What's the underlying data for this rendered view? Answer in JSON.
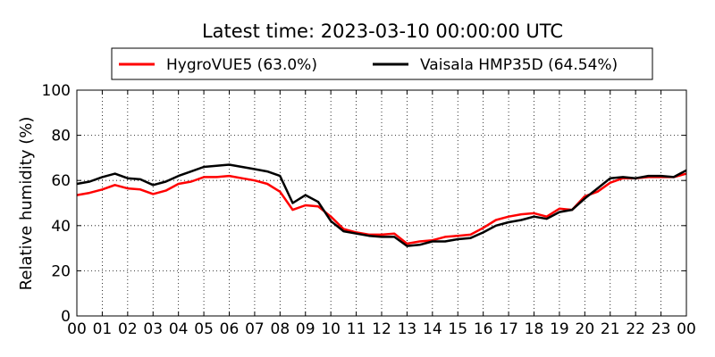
{
  "chart_data": {
    "type": "line",
    "title": "Latest time: 2023-03-10 00:00:00 UTC",
    "xlabel": "",
    "ylabel": "Relative humidity (%)",
    "xlim": [
      0,
      24
    ],
    "ylim": [
      0,
      100
    ],
    "grid": true,
    "legend_position": "top-center",
    "x_tick_labels": [
      "00",
      "01",
      "02",
      "03",
      "04",
      "05",
      "06",
      "07",
      "08",
      "09",
      "10",
      "11",
      "12",
      "13",
      "14",
      "15",
      "16",
      "17",
      "18",
      "19",
      "20",
      "21",
      "22",
      "23",
      "00"
    ],
    "y_tick_labels": [
      "0",
      "20",
      "40",
      "60",
      "80",
      "100"
    ],
    "x": [
      0,
      0.5,
      1,
      1.5,
      2,
      2.5,
      3,
      3.5,
      4,
      4.5,
      5,
      5.5,
      6,
      6.5,
      7,
      7.5,
      8,
      8.5,
      9,
      9.5,
      10,
      10.5,
      11,
      11.5,
      12,
      12.5,
      13,
      13.5,
      14,
      14.5,
      15,
      15.5,
      16,
      16.5,
      17,
      17.5,
      18,
      18.5,
      19,
      19.5,
      20,
      20.5,
      21,
      21.5,
      22,
      22.5,
      23,
      23.5,
      24
    ],
    "series": [
      {
        "name": "HygroVUE5 (63.0%)",
        "color": "#ff0000",
        "values": [
          53.5,
          54.5,
          56,
          58,
          56.5,
          56,
          54,
          55.5,
          58.5,
          59.5,
          61.5,
          61.5,
          62,
          61,
          60,
          58.5,
          55,
          47,
          49,
          48.5,
          44,
          38.5,
          37,
          36,
          36,
          36.5,
          32,
          33,
          33.5,
          35,
          35.5,
          36,
          39,
          42.5,
          44,
          45,
          45.5,
          44,
          47.5,
          47,
          53,
          55,
          59,
          61,
          61,
          61.5,
          61.5,
          61.5,
          63
        ]
      },
      {
        "name": "Vaisala HMP35D (64.54%)",
        "color": "#000000",
        "values": [
          58.5,
          59.5,
          61.5,
          63,
          61,
          60.5,
          58,
          59.5,
          62,
          64,
          66,
          66.5,
          67,
          66,
          65,
          64,
          62,
          50,
          53.5,
          50.5,
          42,
          37.5,
          36.5,
          35.5,
          35,
          35,
          31,
          31.5,
          33,
          33,
          34,
          34.5,
          37,
          40,
          41.5,
          42.5,
          44,
          43,
          46,
          47,
          52,
          56.5,
          61,
          61.5,
          61,
          62,
          62,
          61.5,
          64.5
        ]
      }
    ]
  }
}
